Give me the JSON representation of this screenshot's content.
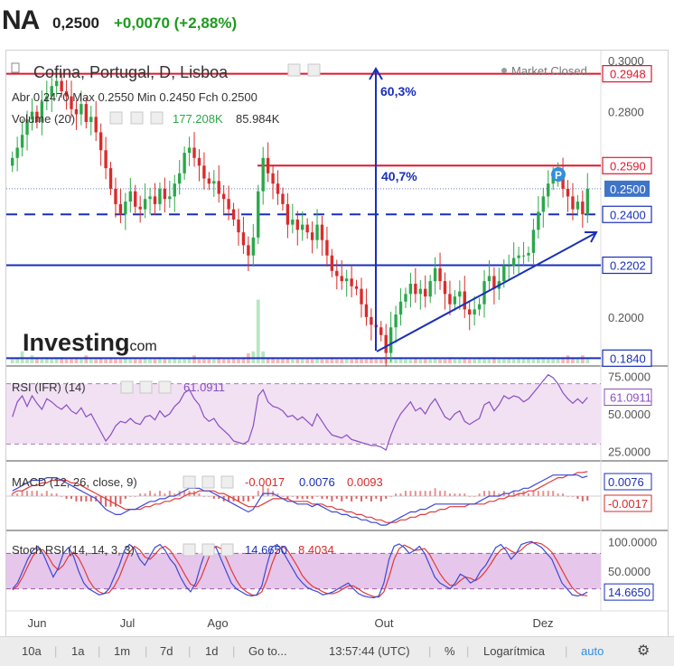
{
  "header": {
    "symbol": "NA",
    "price": "0,2500",
    "change": "+0,0070 (+2,88%)"
  },
  "colors": {
    "up": "#2ba84a",
    "down": "#d92b2b",
    "hline_red": "#e0182e",
    "hline_blue": "#1a2fb8",
    "rsi": "#8a4ec2",
    "rsi_fill": "#f1e1f3",
    "macd": "#3b49d6",
    "signal": "#e03b3b",
    "stoch_k": "#3b49d6",
    "stoch_d": "#e03b3b",
    "stoch_fill": "#e6c6ea"
  },
  "legend": {
    "title": "Cofina, Portugal, D, Lisboa",
    "market_status": "Market Closed",
    "ohlc": {
      "abr_label": "Abr",
      "abr": "0.2470",
      "max_label": "Max",
      "max": "0.2550",
      "min_label": "Min",
      "min": "0.2450",
      "fch_label": "Fch",
      "fch": "0.2500"
    },
    "volume": {
      "label": "Volume (20)",
      "v1": "177.208K",
      "v2": "85.984K"
    }
  },
  "brand": {
    "text": "Investing",
    "suffix": ".com"
  },
  "annotations": {
    "pct_top": "60,3%",
    "pct_mid": "40,7%",
    "marker": "P"
  },
  "chart_data": [
    {
      "type": "candlestick",
      "name": "price",
      "ylim": [
        0.182,
        0.301
      ],
      "y_ticks": [
        "0.3000",
        "0.2800",
        "0.2000"
      ],
      "x_ticks": [
        "Jun",
        "Jul",
        "Ago",
        "Out",
        "Dez"
      ],
      "hlines": [
        {
          "value": "0.2948",
          "color": "red",
          "style": "solid"
        },
        {
          "value": "0.2590",
          "color": "red",
          "style": "solid"
        },
        {
          "value": "0.2500",
          "color": "blue",
          "style": "dotted",
          "current": true
        },
        {
          "value": "0.2400",
          "color": "blue",
          "style": "dashed"
        },
        {
          "value": "0.2202",
          "color": "blue",
          "style": "solid"
        },
        {
          "value": "0.1840",
          "color": "blue",
          "style": "solid"
        }
      ],
      "closes": [
        0.262,
        0.266,
        0.271,
        0.277,
        0.28,
        0.276,
        0.284,
        0.286,
        0.29,
        0.292,
        0.288,
        0.286,
        0.281,
        0.279,
        0.283,
        0.276,
        0.278,
        0.272,
        0.265,
        0.258,
        0.25,
        0.244,
        0.24,
        0.245,
        0.249,
        0.243,
        0.242,
        0.246,
        0.247,
        0.244,
        0.25,
        0.246,
        0.247,
        0.252,
        0.256,
        0.264,
        0.266,
        0.262,
        0.259,
        0.254,
        0.252,
        0.253,
        0.248,
        0.246,
        0.242,
        0.238,
        0.233,
        0.228,
        0.224,
        0.231,
        0.249,
        0.262,
        0.256,
        0.252,
        0.248,
        0.244,
        0.236,
        0.238,
        0.234,
        0.236,
        0.233,
        0.23,
        0.236,
        0.23,
        0.224,
        0.218,
        0.216,
        0.214,
        0.215,
        0.212,
        0.211,
        0.205,
        0.2,
        0.197,
        0.196,
        0.193,
        0.186,
        0.196,
        0.201,
        0.206,
        0.209,
        0.213,
        0.209,
        0.211,
        0.208,
        0.214,
        0.219,
        0.214,
        0.209,
        0.205,
        0.208,
        0.21,
        0.203,
        0.201,
        0.203,
        0.205,
        0.214,
        0.216,
        0.211,
        0.214,
        0.22,
        0.22,
        0.223,
        0.224,
        0.224,
        0.225,
        0.234,
        0.241,
        0.247,
        0.252,
        0.256,
        0.256,
        0.25,
        0.247,
        0.242,
        0.245,
        0.24,
        0.25
      ]
    },
    {
      "type": "bar",
      "name": "volume",
      "values": [
        0.2,
        0.3,
        0.6,
        0.2,
        0.4,
        0.3,
        0.2,
        0.3,
        0.2,
        0.3,
        0.3,
        0.2,
        0.2,
        0.3,
        0.2,
        0.4,
        0.2,
        0.2,
        0.3,
        0.2,
        0.3,
        0.2,
        0.2,
        0.3,
        0.2,
        0.2,
        0.2,
        0.3,
        0.2,
        0.2,
        0.3,
        0.2,
        0.2,
        0.3,
        0.2,
        0.2,
        0.3,
        0.4,
        0.2,
        0.2,
        0.2,
        0.2,
        0.3,
        0.2,
        0.2,
        0.3,
        0.2,
        0.3,
        0.5,
        0.6,
        3.2,
        0.6,
        0.3,
        0.3,
        0.2,
        0.3,
        0.3,
        0.2,
        0.2,
        0.3,
        0.2,
        0.2,
        0.3,
        0.2,
        0.2,
        0.3,
        0.2,
        0.2,
        0.3,
        0.2,
        0.3,
        0.2,
        0.2,
        0.3,
        0.2,
        0.2,
        0.3,
        0.2,
        0.2,
        0.3,
        0.2,
        0.2,
        0.3,
        0.2,
        0.2,
        0.2,
        0.3,
        0.2,
        0.2,
        0.3,
        0.2,
        0.2,
        0.3,
        0.2,
        0.2,
        0.3,
        0.2,
        0.2,
        0.3,
        0.2,
        0.2,
        0.3,
        0.2,
        0.3,
        0.3,
        0.3,
        0.2,
        0.3,
        0.3,
        0.2,
        0.3,
        0.3,
        0.3,
        0.4,
        0.3,
        0.3,
        0.4,
        0.2
      ]
    },
    {
      "type": "line",
      "name": "RSI (IFR) (14)",
      "value": "61.0911",
      "y_ticks": [
        "75.0000",
        "61.0911",
        "50.0000",
        "25.0000"
      ],
      "ylim": [
        20,
        80
      ],
      "band": [
        30,
        70
      ],
      "values": [
        48,
        58,
        62,
        55,
        62,
        57,
        53,
        60,
        58,
        55,
        53,
        56,
        52,
        50,
        54,
        48,
        50,
        44,
        38,
        32,
        36,
        42,
        45,
        44,
        47,
        44,
        43,
        48,
        49,
        46,
        52,
        48,
        50,
        55,
        58,
        64,
        66,
        60,
        56,
        48,
        45,
        47,
        42,
        39,
        36,
        32,
        31,
        30,
        32,
        42,
        62,
        66,
        58,
        55,
        54,
        52,
        48,
        49,
        46,
        48,
        45,
        42,
        50,
        45,
        40,
        36,
        35,
        34,
        36,
        33,
        32,
        31,
        30,
        29,
        29,
        28,
        26,
        36,
        44,
        50,
        54,
        58,
        52,
        54,
        50,
        56,
        60,
        54,
        48,
        46,
        50,
        52,
        45,
        43,
        45,
        47,
        56,
        58,
        52,
        56,
        62,
        60,
        62,
        61,
        58,
        60,
        64,
        68,
        72,
        76,
        74,
        70,
        64,
        60,
        57,
        60,
        57,
        61
      ]
    },
    {
      "type": "line",
      "name": "MACD (12, 26, close, 9)",
      "values_label": [
        "-0.0017",
        "0.0076",
        "0.0093"
      ],
      "y_ticks": [
        "0.0076",
        "-0.0017"
      ],
      "ylim": [
        -0.012,
        0.012
      ],
      "macd": [
        0.002,
        0.003,
        0.004,
        0.005,
        0.006,
        0.006,
        0.006,
        0.007,
        0.007,
        0.007,
        0.006,
        0.005,
        0.004,
        0.003,
        0.002,
        0.001,
        0.0,
        -0.001,
        -0.003,
        -0.005,
        -0.006,
        -0.007,
        -0.007,
        -0.006,
        -0.005,
        -0.005,
        -0.004,
        -0.003,
        -0.002,
        -0.002,
        -0.001,
        -0.001,
        0.0,
        0.0,
        0.001,
        0.002,
        0.003,
        0.003,
        0.003,
        0.002,
        0.002,
        0.001,
        0.0,
        -0.001,
        -0.002,
        -0.003,
        -0.004,
        -0.005,
        -0.006,
        -0.005,
        -0.002,
        0.001,
        0.001,
        0.001,
        0.0,
        -0.001,
        -0.002,
        -0.002,
        -0.003,
        -0.003,
        -0.003,
        -0.004,
        -0.003,
        -0.004,
        -0.005,
        -0.006,
        -0.006,
        -0.007,
        -0.007,
        -0.008,
        -0.008,
        -0.009,
        -0.009,
        -0.01,
        -0.01,
        -0.011,
        -0.011,
        -0.01,
        -0.009,
        -0.008,
        -0.007,
        -0.006,
        -0.006,
        -0.005,
        -0.005,
        -0.004,
        -0.003,
        -0.003,
        -0.003,
        -0.003,
        -0.003,
        -0.003,
        -0.003,
        -0.003,
        -0.003,
        -0.002,
        -0.001,
        0.0,
        0.0,
        0.0,
        0.001,
        0.001,
        0.002,
        0.002,
        0.003,
        0.003,
        0.004,
        0.005,
        0.006,
        0.007,
        0.008,
        0.008,
        0.008,
        0.008,
        0.008,
        0.008,
        0.007,
        0.0076
      ],
      "signal": [
        0.001,
        0.002,
        0.002,
        0.003,
        0.004,
        0.004,
        0.005,
        0.005,
        0.006,
        0.006,
        0.006,
        0.006,
        0.005,
        0.005,
        0.004,
        0.003,
        0.002,
        0.001,
        0.0,
        -0.001,
        -0.002,
        -0.003,
        -0.004,
        -0.005,
        -0.005,
        -0.005,
        -0.005,
        -0.004,
        -0.004,
        -0.003,
        -0.003,
        -0.002,
        -0.002,
        -0.001,
        -0.001,
        0.0,
        0.001,
        0.001,
        0.002,
        0.002,
        0.002,
        0.002,
        0.001,
        0.001,
        0.0,
        -0.001,
        -0.002,
        -0.003,
        -0.004,
        -0.004,
        -0.004,
        -0.003,
        -0.002,
        -0.001,
        -0.001,
        -0.001,
        -0.001,
        -0.002,
        -0.002,
        -0.002,
        -0.002,
        -0.003,
        -0.003,
        -0.003,
        -0.004,
        -0.004,
        -0.005,
        -0.005,
        -0.006,
        -0.006,
        -0.007,
        -0.007,
        -0.008,
        -0.008,
        -0.009,
        -0.009,
        -0.01,
        -0.01,
        -0.01,
        -0.009,
        -0.009,
        -0.008,
        -0.008,
        -0.007,
        -0.007,
        -0.006,
        -0.006,
        -0.005,
        -0.005,
        -0.004,
        -0.004,
        -0.004,
        -0.004,
        -0.003,
        -0.003,
        -0.003,
        -0.003,
        -0.002,
        -0.002,
        -0.001,
        -0.001,
        0.0,
        0.0,
        0.001,
        0.001,
        0.002,
        0.002,
        0.003,
        0.004,
        0.005,
        0.006,
        0.007,
        0.007,
        0.008,
        0.008,
        0.009,
        0.009,
        0.0093
      ]
    },
    {
      "type": "line",
      "name": "Stoch RSI (14, 14, 3, 3)",
      "values_label": [
        "14.6650",
        "8.4034"
      ],
      "y_ticks": [
        "100.0000",
        "50.0000",
        "14.6650"
      ],
      "ylim": [
        -5,
        105
      ],
      "band": [
        20,
        80
      ],
      "k": [
        20,
        30,
        50,
        70,
        85,
        92,
        80,
        60,
        40,
        55,
        80,
        90,
        75,
        50,
        30,
        20,
        15,
        10,
        12,
        20,
        40,
        60,
        85,
        95,
        88,
        70,
        60,
        75,
        90,
        95,
        85,
        70,
        60,
        40,
        25,
        15,
        30,
        60,
        85,
        95,
        90,
        70,
        50,
        30,
        20,
        15,
        10,
        8,
        10,
        25,
        60,
        90,
        95,
        85,
        70,
        55,
        40,
        30,
        22,
        18,
        15,
        10,
        12,
        15,
        20,
        25,
        30,
        20,
        12,
        8,
        6,
        5,
        8,
        30,
        70,
        92,
        96,
        90,
        80,
        85,
        92,
        80,
        60,
        40,
        30,
        25,
        20,
        30,
        45,
        40,
        30,
        35,
        50,
        60,
        75,
        90,
        95,
        85,
        70,
        80,
        95,
        98,
        100,
        95,
        90,
        80,
        70,
        50,
        30,
        20,
        10,
        8,
        10,
        14.7
      ],
      "d": [
        18,
        25,
        40,
        58,
        75,
        86,
        86,
        75,
        60,
        52,
        60,
        75,
        82,
        72,
        55,
        35,
        22,
        15,
        12,
        14,
        24,
        40,
        62,
        82,
        92,
        86,
        74,
        70,
        78,
        88,
        92,
        85,
        72,
        58,
        42,
        28,
        24,
        38,
        60,
        82,
        92,
        88,
        72,
        52,
        35,
        22,
        15,
        10,
        9,
        15,
        35,
        62,
        84,
        92,
        86,
        72,
        58,
        42,
        32,
        24,
        20,
        15,
        12,
        12,
        15,
        20,
        25,
        25,
        20,
        14,
        10,
        7,
        6,
        15,
        40,
        70,
        88,
        94,
        90,
        85,
        86,
        88,
        78,
        62,
        46,
        34,
        26,
        26,
        34,
        40,
        38,
        34,
        40,
        50,
        62,
        76,
        86,
        90,
        84,
        80,
        86,
        94,
        98,
        98,
        96,
        90,
        82,
        68,
        52,
        36,
        22,
        14,
        9,
        8.4
      ]
    }
  ],
  "toolbar": {
    "items": [
      "10a",
      "1a",
      "1m",
      "7d",
      "1d",
      "Go to...",
      "13:57:44 (UTC)",
      "%",
      "Logarítmica",
      "auto"
    ]
  }
}
